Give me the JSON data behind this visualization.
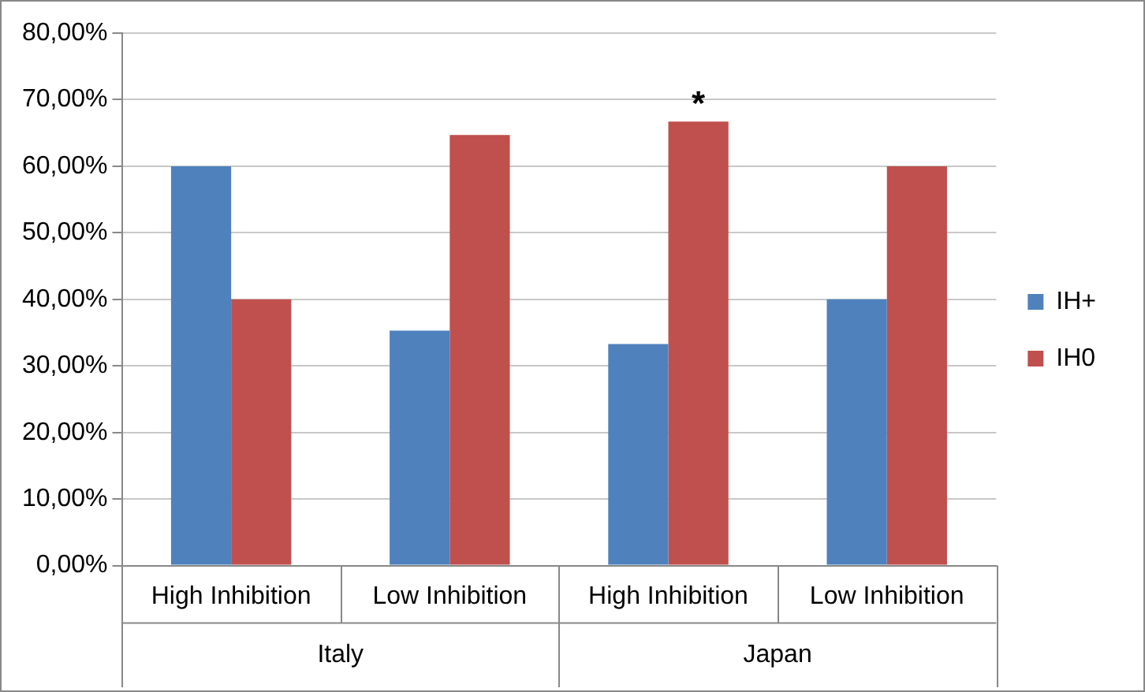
{
  "chart_data": {
    "type": "bar",
    "categories": [
      "High Inhibition",
      "Low Inhibition",
      "High Inhibition",
      "Low Inhibition"
    ],
    "series": [
      {
        "name": "IH+",
        "color": "#4f81bd",
        "values": [
          60,
          35.3,
          33.3,
          40
        ]
      },
      {
        "name": "IH0",
        "color": "#c0504d",
        "values": [
          40,
          64.7,
          66.7,
          60
        ]
      }
    ],
    "ylim": [
      0,
      80
    ],
    "yticks": [
      {
        "value": 0,
        "label": "0,00%"
      },
      {
        "value": 10,
        "label": "10,00%"
      },
      {
        "value": 20,
        "label": "20,00%"
      },
      {
        "value": 30,
        "label": "30,00%"
      },
      {
        "value": 40,
        "label": "40,00%"
      },
      {
        "value": 50,
        "label": "50,00%"
      },
      {
        "value": 60,
        "label": "60,00%"
      },
      {
        "value": 70,
        "label": "70,00%"
      },
      {
        "value": 80,
        "label": "80,00%"
      }
    ],
    "grid": "y",
    "legend": "right",
    "annotations": [
      "*",
      "Italy",
      "Japan"
    ]
  }
}
